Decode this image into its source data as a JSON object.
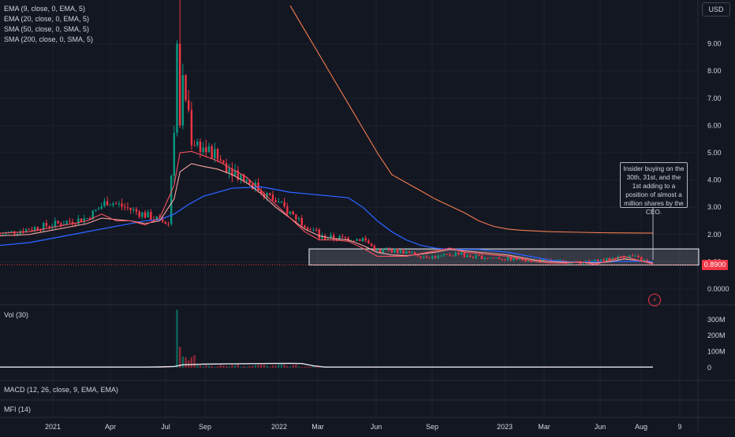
{
  "currency": "USD",
  "last_price_label": "0.8900",
  "annotation": "Insider buying on the 30th, 31st, and the 1st adding to a position of almost a million shares by the CEO.",
  "indicators": {
    "ema9": "EMA (9, close, 0, EMA, 5)",
    "ema20": "EMA (20, close, 0, EMA, 5)",
    "sma50": "SMA (50, close, 0, SMA, 5)",
    "sma200": "SMA (200, close, 0, SMA, 5)",
    "vol": "Vol (30)",
    "macd": "MACD (12, 26, close, 9, EMA, EMA)",
    "mfi": "MFI (14)"
  },
  "colors": {
    "background": "#131722",
    "up": "#089981",
    "down": "#f23645",
    "ema9": "#f7525f",
    "ema20": "#f8a5a0",
    "sma50": "#2962ff",
    "sma200": "#f57c4f",
    "grid": "#1e222d",
    "axis_text": "#d1d4dc"
  },
  "chart_data": {
    "type": "candlestick",
    "price_axis": {
      "ticks": [
        "0.0000",
        "1.00",
        "2.00",
        "3.00",
        "4.00",
        "5.00",
        "6.00",
        "7.00",
        "8.00",
        "9.00"
      ],
      "ylim": [
        -0.3,
        10.4
      ]
    },
    "volume_axis": {
      "ticks": [
        "0",
        "100M",
        "200M",
        "300M"
      ]
    },
    "x_axis": {
      "ticks": [
        "2021",
        "Apr",
        "Jul",
        "Sep",
        "2022",
        "Mar",
        "Jun",
        "Sep",
        "2023",
        "Mar",
        "Jun",
        "Aug",
        "9"
      ]
    },
    "last_price": 0.89,
    "series": {
      "ema9": [
        [
          0,
          2.05
        ],
        [
          10,
          2.1
        ],
        [
          20,
          2.3
        ],
        [
          30,
          2.5
        ],
        [
          35,
          2.75
        ],
        [
          40,
          2.5
        ],
        [
          45,
          2.5
        ],
        [
          50,
          2.35
        ],
        [
          55,
          2.6
        ],
        [
          60,
          3.8
        ],
        [
          62,
          5.0
        ],
        [
          66,
          5.05
        ],
        [
          70,
          4.9
        ],
        [
          75,
          4.7
        ],
        [
          80,
          4.4
        ],
        [
          85,
          4.1
        ],
        [
          90,
          3.6
        ],
        [
          95,
          3.1
        ],
        [
          100,
          2.6
        ],
        [
          105,
          2.1
        ],
        [
          110,
          1.8
        ],
        [
          115,
          1.8
        ],
        [
          120,
          1.75
        ],
        [
          125,
          1.5
        ],
        [
          130,
          1.2
        ],
        [
          135,
          1.2
        ],
        [
          140,
          1.2
        ],
        [
          145,
          1.3
        ],
        [
          150,
          1.4
        ],
        [
          155,
          1.5
        ],
        [
          160,
          1.35
        ],
        [
          165,
          1.3
        ],
        [
          170,
          1.25
        ],
        [
          175,
          1.2
        ],
        [
          180,
          1.1
        ],
        [
          185,
          1.0
        ],
        [
          190,
          0.95
        ],
        [
          195,
          0.95
        ],
        [
          200,
          1.0
        ],
        [
          205,
          0.9
        ],
        [
          210,
          1.05
        ],
        [
          215,
          1.2
        ],
        [
          220,
          1.05
        ],
        [
          225,
          0.92
        ]
      ],
      "ema20": [
        [
          0,
          1.95
        ],
        [
          10,
          2.0
        ],
        [
          20,
          2.2
        ],
        [
          30,
          2.4
        ],
        [
          35,
          2.6
        ],
        [
          40,
          2.55
        ],
        [
          45,
          2.5
        ],
        [
          50,
          2.4
        ],
        [
          55,
          2.5
        ],
        [
          60,
          3.3
        ],
        [
          62,
          4.3
        ],
        [
          66,
          4.6
        ],
        [
          70,
          4.5
        ],
        [
          75,
          4.4
        ],
        [
          80,
          4.2
        ],
        [
          85,
          3.9
        ],
        [
          90,
          3.5
        ],
        [
          95,
          3.0
        ],
        [
          100,
          2.6
        ],
        [
          105,
          2.2
        ],
        [
          110,
          1.95
        ],
        [
          115,
          1.85
        ],
        [
          120,
          1.8
        ],
        [
          125,
          1.6
        ],
        [
          130,
          1.35
        ],
        [
          135,
          1.25
        ],
        [
          140,
          1.22
        ],
        [
          145,
          1.28
        ],
        [
          150,
          1.35
        ],
        [
          155,
          1.45
        ],
        [
          160,
          1.4
        ],
        [
          165,
          1.35
        ],
        [
          170,
          1.3
        ],
        [
          175,
          1.25
        ],
        [
          180,
          1.15
        ],
        [
          185,
          1.05
        ],
        [
          190,
          1.0
        ],
        [
          195,
          0.98
        ],
        [
          200,
          0.98
        ],
        [
          205,
          0.95
        ],
        [
          210,
          1.0
        ],
        [
          215,
          1.1
        ],
        [
          220,
          1.05
        ],
        [
          225,
          0.95
        ]
      ],
      "sma50": [
        [
          0,
          1.6
        ],
        [
          10,
          1.7
        ],
        [
          20,
          1.9
        ],
        [
          30,
          2.1
        ],
        [
          40,
          2.3
        ],
        [
          50,
          2.5
        ],
        [
          55,
          2.55
        ],
        [
          60,
          2.75
        ],
        [
          65,
          3.1
        ],
        [
          70,
          3.4
        ],
        [
          80,
          3.7
        ],
        [
          90,
          3.75
        ],
        [
          95,
          3.65
        ],
        [
          100,
          3.55
        ],
        [
          110,
          3.45
        ],
        [
          120,
          3.35
        ],
        [
          125,
          3.0
        ],
        [
          130,
          2.5
        ],
        [
          135,
          2.1
        ],
        [
          140,
          1.8
        ],
        [
          145,
          1.6
        ],
        [
          150,
          1.5
        ],
        [
          155,
          1.45
        ],
        [
          160,
          1.45
        ],
        [
          165,
          1.45
        ],
        [
          170,
          1.4
        ],
        [
          175,
          1.35
        ],
        [
          180,
          1.25
        ],
        [
          185,
          1.15
        ],
        [
          190,
          1.05
        ],
        [
          195,
          1.0
        ],
        [
          200,
          0.98
        ],
        [
          210,
          1.0
        ],
        [
          220,
          1.02
        ],
        [
          225,
          1.0
        ]
      ],
      "sma200": [
        [
          100,
          10.4
        ],
        [
          105,
          9.5
        ],
        [
          110,
          8.6
        ],
        [
          115,
          7.7
        ],
        [
          120,
          6.8
        ],
        [
          125,
          5.9
        ],
        [
          130,
          5.0
        ],
        [
          135,
          4.2
        ],
        [
          140,
          3.9
        ],
        [
          145,
          3.6
        ],
        [
          150,
          3.3
        ],
        [
          155,
          3.05
        ],
        [
          160,
          2.8
        ],
        [
          165,
          2.5
        ],
        [
          170,
          2.3
        ],
        [
          175,
          2.2
        ],
        [
          180,
          2.15
        ],
        [
          190,
          2.1
        ],
        [
          200,
          2.08
        ],
        [
          210,
          2.06
        ],
        [
          225,
          2.05
        ]
      ],
      "volume_ma": [
        [
          0,
          4
        ],
        [
          50,
          4
        ],
        [
          55,
          5
        ],
        [
          60,
          8
        ],
        [
          63,
          18
        ],
        [
          70,
          22
        ],
        [
          80,
          24
        ],
        [
          90,
          26
        ],
        [
          100,
          27
        ],
        [
          104,
          26
        ],
        [
          108,
          12
        ],
        [
          112,
          4
        ],
        [
          225,
          4
        ]
      ]
    },
    "candles_note": "Daily OHLC from Jan 2021 to Aug 2023: rally to ~10.4 in Jul 2021, decline to ~1.8 by Mar 2022, then range 0.9-1.5 through Aug 2023."
  }
}
